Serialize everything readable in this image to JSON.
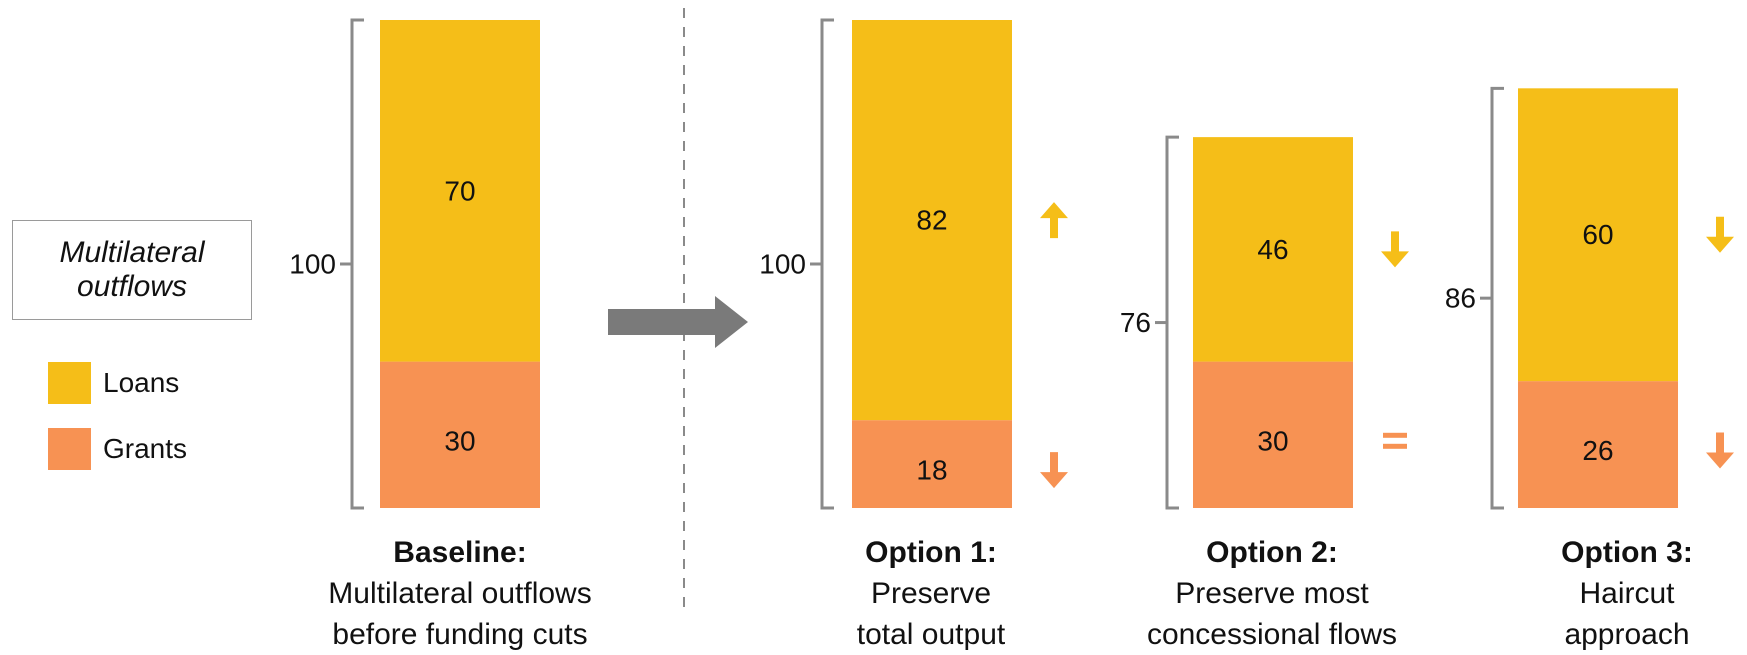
{
  "legend": {
    "title": "Multilateral outflows",
    "items": [
      {
        "label": "Loans",
        "color": "#F5BE18"
      },
      {
        "label": "Grants",
        "color": "#F79253"
      }
    ]
  },
  "colors": {
    "loans": "#F5BE18",
    "grants": "#F79253",
    "bracket": "#8a8a8a",
    "arrow": "#7a7a7a"
  },
  "chart_data": {
    "type": "bar",
    "stacked": true,
    "categories": [
      "Baseline",
      "Option 1",
      "Option 2",
      "Option 3"
    ],
    "series": [
      {
        "name": "Loans",
        "values": [
          70,
          82,
          46,
          60
        ]
      },
      {
        "name": "Grants",
        "values": [
          30,
          18,
          30,
          26
        ]
      }
    ],
    "totals": [
      100,
      100,
      76,
      86
    ],
    "change_markers": [
      {
        "category": "Option 1",
        "Loans": "up",
        "Grants": "down"
      },
      {
        "category": "Option 2",
        "Loans": "down",
        "Grants": "equal"
      },
      {
        "category": "Option 3",
        "Loans": "down",
        "Grants": "down"
      }
    ],
    "captions": [
      {
        "head": "Baseline:",
        "lines": [
          "Multilateral outflows",
          "before funding cuts"
        ]
      },
      {
        "head": "Option 1:",
        "lines": [
          "Preserve",
          "total output"
        ]
      },
      {
        "head": "Option 2:",
        "lines": [
          "Preserve most",
          "concessional flows"
        ]
      },
      {
        "head": "Option 3:",
        "lines": [
          "Haircut",
          "approach"
        ]
      }
    ]
  }
}
